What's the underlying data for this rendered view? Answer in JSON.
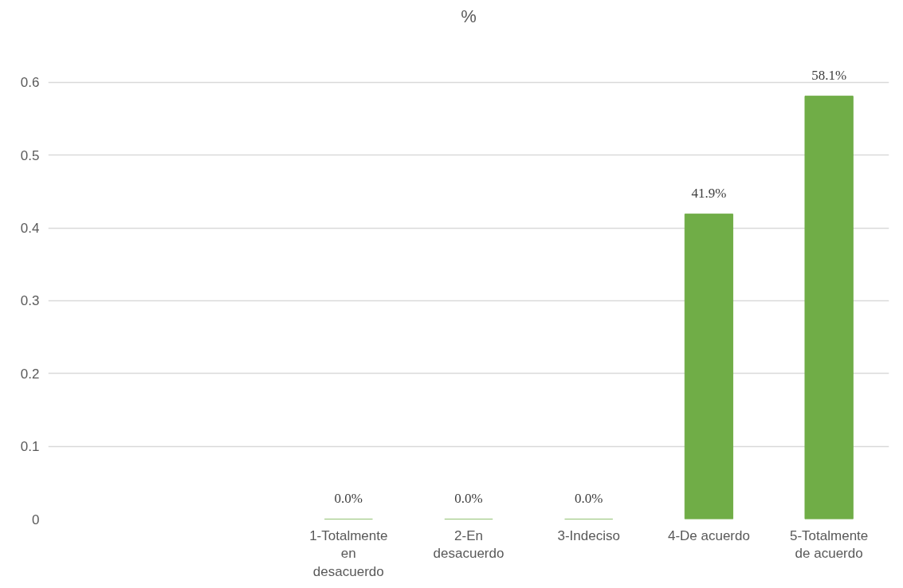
{
  "chart_data": {
    "type": "bar",
    "title": "%",
    "categories": [
      null,
      null,
      "1-Totalmente en desacuerdo",
      "2-En desacuerdo",
      "3-Indeciso",
      "4-De acuerdo",
      "5-Totalmente de acuerdo"
    ],
    "values": [
      null,
      null,
      0,
      0,
      0,
      0.419,
      0.581
    ],
    "value_labels": [
      null,
      null,
      "0.0%",
      "0.0%",
      "0.0%",
      "41.9%",
      "58.1%"
    ],
    "color": "#70ad47",
    "ylim": [
      0,
      0.6
    ],
    "yticks": [
      0,
      0.1,
      0.2,
      0.3,
      0.4,
      0.5,
      0.6
    ],
    "grid": "y"
  }
}
